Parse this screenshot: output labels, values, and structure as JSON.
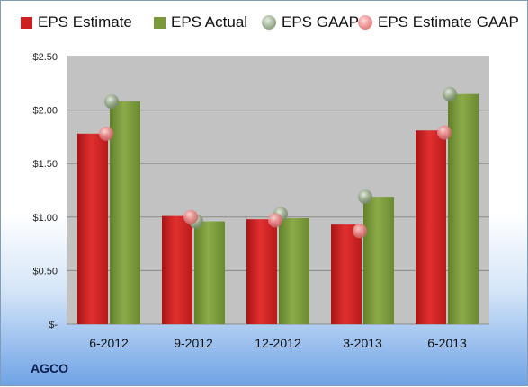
{
  "chart_data": {
    "type": "bar",
    "title": "",
    "xlabel": "",
    "ylabel": "",
    "categories": [
      "6-2012",
      "9-2012",
      "12-2012",
      "3-2013",
      "6-2013"
    ],
    "series": [
      {
        "name": "EPS Estimate",
        "kind": "bar",
        "color": "#cc1f1f",
        "values": [
          1.78,
          1.01,
          0.98,
          0.93,
          1.81
        ]
      },
      {
        "name": "EPS Actual",
        "kind": "bar",
        "color": "#7a9a3a",
        "values": [
          2.08,
          0.96,
          0.99,
          1.19,
          2.15
        ]
      },
      {
        "name": "EPS GAAP",
        "kind": "marker",
        "color": "#9aac8e",
        "values": [
          2.08,
          0.96,
          1.03,
          1.19,
          2.15
        ]
      },
      {
        "name": "EPS Estimate GAAP",
        "kind": "marker",
        "color": "#e98a8a",
        "values": [
          1.78,
          1.0,
          0.97,
          0.87,
          1.79
        ]
      }
    ],
    "ylim": [
      0,
      2.5
    ],
    "yticks": [
      0,
      0.5,
      1.0,
      1.5,
      2.0,
      2.5
    ],
    "ytick_labels": [
      "$-",
      "$0.50",
      "$1.00",
      "$1.50",
      "$2.00",
      "$2.50"
    ],
    "grid": true,
    "legend_position": "top"
  },
  "company": "AGCO"
}
